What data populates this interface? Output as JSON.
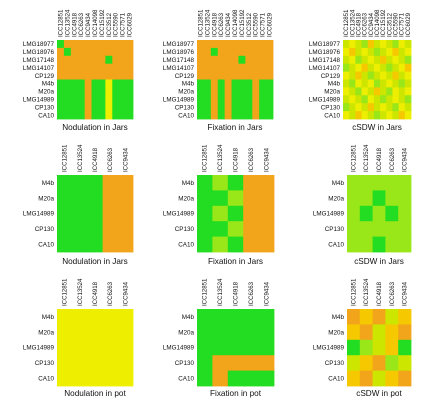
{
  "colors": {
    "G": "#22dd22",
    "Y": "#eeee00",
    "O": "#f2a51a",
    "L": "#99e619",
    "Q": "#cce600",
    "A": "#f5c800"
  },
  "chart_data": [
    {
      "type": "heatmap",
      "title": "Nodulation in Jars",
      "columns": [
        "ICC12851",
        "ICC13524",
        "ICC4918",
        "ICC6263",
        "ICC9434",
        "ICC14098",
        "ICC15192",
        "ICC3512",
        "ICC5590",
        "ICC7571",
        "ICC6029"
      ],
      "rows": [
        "LMG18977",
        "LMG18976",
        "LMG17148",
        "LMG14107",
        "CP129",
        "M4b",
        "M20a",
        "LMG14989",
        "CP130",
        "CA10"
      ],
      "cells": [
        "GOOOOOOOOOO",
        "OGOOOOOOOOO",
        "OOOOOOOGOOO",
        "OOOOOOOOOOO",
        "OOOOOOOOOOO",
        "GGGGOGGYGGG",
        "GGGGOGGYGGG",
        "GGGGOGGYGGG",
        "GGGGOGGYGGG",
        "GGGGOGGYGGG"
      ]
    },
    {
      "type": "heatmap",
      "title": "Fixation in Jars",
      "columns": [
        "ICC12851",
        "ICC13524",
        "ICC4918",
        "ICC6263",
        "ICC9434",
        "ICC14098",
        "ICC15192",
        "ICC3512",
        "ICC5590",
        "ICC7571",
        "ICC6029"
      ],
      "rows": [
        "LMG18977",
        "LMG18976",
        "LMG17148",
        "LMG14107",
        "CP129",
        "M4b",
        "M20a",
        "LMG14989",
        "CP130",
        "CA10"
      ],
      "cells": [
        "OOOOOOOOOOO",
        "OOGOOOOOOOO",
        "OOOOOOGOOOO",
        "OOOOOOOOOOO",
        "OOOOOOOOOOO",
        "GGOGOGGGOGG",
        "GGOGOGGGOGG",
        "GGOGOGGGOGG",
        "GGOGOGGGOGG",
        "GGOGOGGGOGG"
      ]
    },
    {
      "type": "heatmap",
      "title": "cSDW in Jars",
      "columns": [
        "ICC12851",
        "ICC13524",
        "ICC4918",
        "ICC6263",
        "ICC9434",
        "ICC14098",
        "ICC15192",
        "ICC3512",
        "ICC5590",
        "ICC7571",
        "ICC6029"
      ],
      "rows": [
        "LMG18977",
        "LMG18976",
        "LMG17148",
        "LMG14107",
        "CP129",
        "M4b",
        "M20a",
        "LMG14989",
        "CP130",
        "CA10"
      ],
      "cells": [
        "QYQLAQYQLYQ",
        "YAQYQLQYAQY",
        "QYLQYQAQYQL",
        "LQYAQYQLQYA",
        "YQAQLQYQAQY",
        "QLYQYLQYQLQ",
        "YQLYQAQLYQY",
        "QYQLYQLQYQL",
        "LQYQAQYQLYQ",
        "YQAYQLQYQAY"
      ]
    },
    {
      "type": "heatmap",
      "title": "Nodulation in Jars",
      "columns": [
        "ICC12851",
        "ICC13524",
        "ICC4918",
        "ICC6263",
        "ICC9434"
      ],
      "rows": [
        "M4b",
        "M20a",
        "LMG14989",
        "CP130",
        "CA10"
      ],
      "cells": [
        "GGGOO",
        "GGGOO",
        "GGGOO",
        "GGGOO",
        "GGGOO"
      ]
    },
    {
      "type": "heatmap",
      "title": "Fixation in Jars",
      "columns": [
        "ICC12851",
        "ICC13524",
        "ICC4918",
        "ICC6263",
        "ICC9434"
      ],
      "rows": [
        "M4b",
        "M20a",
        "LMG14989",
        "CP130",
        "CA10"
      ],
      "cells": [
        "GLGOO",
        "GGLOO",
        "GLGOO",
        "GGLOO",
        "GLGOO"
      ]
    },
    {
      "type": "heatmap",
      "title": "cSDW in Jars",
      "columns": [
        "ICC12851",
        "ICC13524",
        "ICC4918",
        "ICC6263",
        "ICC9434"
      ],
      "rows": [
        "M4b",
        "M20a",
        "LMG14989",
        "CP130",
        "CA10"
      ],
      "cells": [
        "LLLLL",
        "LLGLL",
        "LGLGL",
        "LLLLL",
        "LLGLL"
      ]
    },
    {
      "type": "heatmap",
      "title": "Nodulation in pot",
      "columns": [
        "ICC12851",
        "ICC13524",
        "ICC4918",
        "ICC6263",
        "ICC9434"
      ],
      "rows": [
        "M4b",
        "M20a",
        "LMG14989",
        "CP130",
        "CA10"
      ],
      "cells": [
        "YYYYY",
        "YYYYY",
        "YYYYY",
        "YYYYY",
        "YYYYY"
      ]
    },
    {
      "type": "heatmap",
      "title": "Fixation in pot",
      "columns": [
        "ICC12851",
        "ICC13524",
        "ICC4918",
        "ICC6263",
        "ICC9434"
      ],
      "rows": [
        "M4b",
        "M20a",
        "LMG14989",
        "CP130",
        "CA10"
      ],
      "cells": [
        "GGGGG",
        "GGGGG",
        "GGGGG",
        "GOOOO",
        "GOGGG"
      ]
    },
    {
      "type": "heatmap",
      "title": "cSDW in pot",
      "columns": [
        "ICC12851",
        "ICC13524",
        "ICC4918",
        "ICC6263",
        "ICC9434"
      ],
      "rows": [
        "M4b",
        "M20a",
        "LMG14989",
        "CP130",
        "CA10"
      ],
      "cells": [
        "OAOQA",
        "AOQAO",
        "GLQAG",
        "QAOLQ",
        "AOQAO"
      ]
    }
  ]
}
